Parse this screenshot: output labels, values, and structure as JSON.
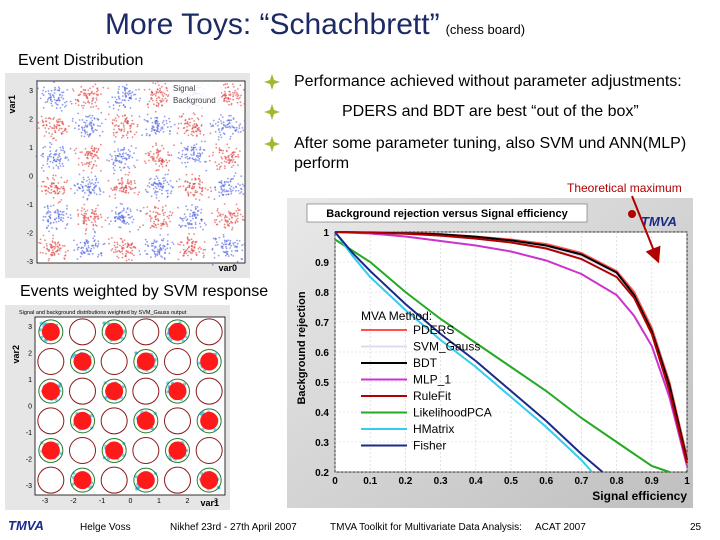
{
  "slide": {
    "title": "More Toys: “Schachbrett”",
    "title_sub": "(chess board)",
    "label_event_distribution": "Event Distribution",
    "label_svm": "Events weighted by SVM response",
    "bullets": [
      "Performance achieved without parameter adjustments:",
      "PDERS and BDT are best “out of the box”",
      "After some parameter tuning, also SVM und ANN(MLP) perform"
    ],
    "theoretical_max": "Theoretical maximum"
  },
  "event_plot": {
    "ylabel": "var1",
    "xlabel": "var0",
    "legend": [
      "Signal",
      "Background"
    ],
    "yticks": [
      "3",
      "2",
      "1",
      "0",
      "-1",
      "-2",
      "-3"
    ],
    "signal_color": "#4a5ee0",
    "background_color": "#e03a3a"
  },
  "svm_plot": {
    "title": "Signal and background distributions weighted by SVM_Gauss output",
    "ylabel": "var2",
    "xlabel": "var1",
    "yticks": [
      "3",
      "2",
      "1",
      "0",
      "-1",
      "-2",
      "-3"
    ],
    "xticks": [
      "-3",
      "-2",
      "-1",
      "0",
      "1",
      "2",
      "3"
    ]
  },
  "chart_data": {
    "type": "line",
    "title": "Background rejection versus Signal efficiency",
    "xlabel": "Signal efficiency",
    "ylabel": "Background rejection",
    "xlim": [
      0,
      1
    ],
    "ylim": [
      0.2,
      1
    ],
    "xticks": [
      "0",
      "0.1",
      "0.2",
      "0.3",
      "0.4",
      "0.5",
      "0.6",
      "0.7",
      "0.8",
      "0.9",
      "1"
    ],
    "yticks": [
      "1",
      "0.9",
      "0.8",
      "0.7",
      "0.6",
      "0.5",
      "0.4",
      "0.3",
      "0.2"
    ],
    "legend_title": "MVA Method:",
    "logo": "TMVA",
    "series": [
      {
        "name": "PDERS",
        "color": "#ff5050",
        "x": [
          0,
          0.1,
          0.2,
          0.3,
          0.4,
          0.5,
          0.6,
          0.7,
          0.8,
          0.85,
          0.9,
          0.95,
          1.0
        ],
        "y": [
          1.0,
          0.999,
          0.997,
          0.993,
          0.985,
          0.975,
          0.96,
          0.93,
          0.87,
          0.8,
          0.68,
          0.5,
          0.25
        ]
      },
      {
        "name": "SVM_Gauss",
        "color": "#e2d8f0",
        "x": [
          0,
          0.1,
          0.2,
          0.3,
          0.4,
          0.5,
          0.6,
          0.7,
          0.8,
          0.85,
          0.9,
          0.95,
          1.0
        ],
        "y": [
          1.0,
          0.998,
          0.995,
          0.99,
          0.98,
          0.97,
          0.95,
          0.92,
          0.86,
          0.79,
          0.67,
          0.48,
          0.24
        ]
      },
      {
        "name": "BDT",
        "color": "#000000",
        "x": [
          0,
          0.1,
          0.2,
          0.3,
          0.4,
          0.5,
          0.6,
          0.7,
          0.8,
          0.85,
          0.9,
          0.95,
          1.0
        ],
        "y": [
          1.0,
          0.998,
          0.996,
          0.992,
          0.984,
          0.972,
          0.955,
          0.925,
          0.865,
          0.79,
          0.67,
          0.49,
          0.24
        ]
      },
      {
        "name": "MLP_1",
        "color": "#cc33cc",
        "x": [
          0,
          0.1,
          0.2,
          0.3,
          0.4,
          0.5,
          0.6,
          0.7,
          0.8,
          0.85,
          0.9,
          0.95,
          1.0
        ],
        "y": [
          1.0,
          0.995,
          0.985,
          0.97,
          0.955,
          0.935,
          0.905,
          0.86,
          0.79,
          0.72,
          0.62,
          0.45,
          0.22
        ]
      },
      {
        "name": "RuleFit",
        "color": "#b00000",
        "x": [
          0,
          0.1,
          0.2,
          0.3,
          0.4,
          0.5,
          0.6,
          0.7,
          0.8,
          0.85,
          0.9,
          0.95,
          1.0
        ],
        "y": [
          1.0,
          0.998,
          0.994,
          0.988,
          0.978,
          0.965,
          0.945,
          0.91,
          0.85,
          0.78,
          0.66,
          0.47,
          0.23
        ]
      },
      {
        "name": "LikelihoodPCA",
        "color": "#22aa22",
        "x": [
          0,
          0.1,
          0.2,
          0.3,
          0.4,
          0.5,
          0.6,
          0.7,
          0.8,
          0.85,
          0.9,
          0.95
        ],
        "y": [
          0.975,
          0.9,
          0.8,
          0.71,
          0.63,
          0.55,
          0.47,
          0.38,
          0.3,
          0.26,
          0.22,
          0.2
        ]
      },
      {
        "name": "HMatrix",
        "color": "#33ccee",
        "x": [
          0,
          0.05,
          0.1,
          0.2,
          0.3,
          0.4,
          0.5,
          0.6,
          0.7,
          0.73
        ],
        "y": [
          1.0,
          0.92,
          0.85,
          0.74,
          0.64,
          0.55,
          0.45,
          0.35,
          0.24,
          0.2
        ]
      },
      {
        "name": "Fisher",
        "color": "#1a2a8a",
        "x": [
          0,
          0.05,
          0.1,
          0.2,
          0.3,
          0.4,
          0.5,
          0.6,
          0.7,
          0.76
        ],
        "y": [
          1.0,
          0.93,
          0.87,
          0.76,
          0.66,
          0.57,
          0.47,
          0.37,
          0.26,
          0.2
        ]
      }
    ]
  },
  "footer": {
    "logo": "TMVA",
    "author": "Helge Voss",
    "venue": "Nikhef 23rd - 27th April 2007",
    "talk": "TMVA Toolkit for Multivariate Data Analysis:",
    "conference": "ACAT 2007",
    "page": "25"
  },
  "colors": {
    "title": "#1c2a66",
    "bullet": "#a0b830",
    "theoretical": "#b00000",
    "plot_frame": "#dddddd"
  }
}
